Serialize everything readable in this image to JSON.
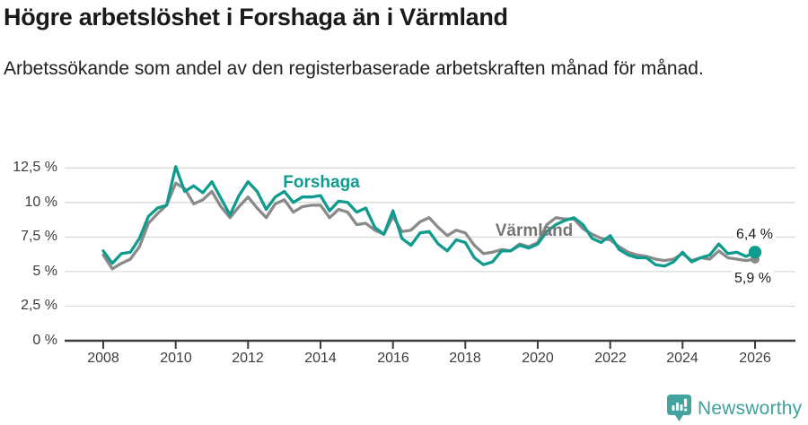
{
  "header": {
    "title": "Högre arbetslöshet i Forshaga än i Värmland",
    "subtitle": "Arbetssökande som andel av den registerbaserade arbetskraften månad för månad."
  },
  "chart_data": {
    "type": "line",
    "title": "Högre arbetslöshet i Forshaga än i Värmland",
    "xlabel": "",
    "ylabel": "",
    "grid": true,
    "legend_position": "inline-labels",
    "xlim": [
      2007.9,
      2026.6
    ],
    "ylim": [
      0,
      13
    ],
    "xticks": [
      2008,
      2010,
      2012,
      2014,
      2016,
      2018,
      2020,
      2022,
      2024,
      2026
    ],
    "yticks": {
      "values": [
        0,
        2.5,
        5,
        7.5,
        10,
        12.5
      ],
      "labels": [
        "0 %",
        "2,5 %",
        "5 %",
        "7,5 %",
        "10 %",
        "12,5 %"
      ]
    },
    "x": [
      2008.0,
      2008.25,
      2008.5,
      2008.75,
      2009.0,
      2009.25,
      2009.5,
      2009.75,
      2010.0,
      2010.25,
      2010.5,
      2010.75,
      2011.0,
      2011.25,
      2011.5,
      2011.75,
      2012.0,
      2012.25,
      2012.5,
      2012.75,
      2013.0,
      2013.25,
      2013.5,
      2013.75,
      2014.0,
      2014.25,
      2014.5,
      2014.75,
      2015.0,
      2015.25,
      2015.5,
      2015.75,
      2016.0,
      2016.25,
      2016.5,
      2016.75,
      2017.0,
      2017.25,
      2017.5,
      2017.75,
      2018.0,
      2018.25,
      2018.5,
      2018.75,
      2019.0,
      2019.25,
      2019.5,
      2019.75,
      2020.0,
      2020.25,
      2020.5,
      2020.75,
      2021.0,
      2021.25,
      2021.5,
      2021.75,
      2022.0,
      2022.25,
      2022.5,
      2022.75,
      2023.0,
      2023.25,
      2023.5,
      2023.75,
      2024.0,
      2024.25,
      2024.5,
      2024.75,
      2025.0,
      2025.25,
      2025.5,
      2025.75,
      2026.0
    ],
    "series": [
      {
        "id": "forshaga",
        "name": "Forshaga",
        "color": "#0f9b8d",
        "end_value": 6.4,
        "end_label": "6,4 %",
        "values": [
          6.5,
          5.6,
          6.3,
          6.4,
          7.4,
          9.0,
          9.6,
          9.8,
          12.6,
          10.8,
          11.2,
          10.7,
          11.5,
          10.3,
          9.1,
          10.5,
          11.5,
          10.8,
          9.5,
          10.4,
          10.8,
          10.0,
          10.4,
          10.4,
          10.5,
          9.4,
          10.1,
          10.0,
          9.3,
          9.6,
          8.2,
          7.7,
          9.4,
          7.4,
          6.9,
          7.8,
          7.9,
          7.0,
          6.5,
          7.3,
          7.1,
          6.0,
          5.5,
          5.7,
          6.5,
          6.5,
          6.9,
          6.7,
          7.0,
          7.9,
          8.4,
          8.7,
          8.9,
          8.4,
          7.4,
          7.1,
          7.6,
          6.6,
          6.2,
          6.0,
          6.0,
          5.5,
          5.4,
          5.7,
          6.4,
          5.7,
          6.0,
          6.2,
          7.0,
          6.3,
          6.4,
          6.1,
          6.4
        ]
      },
      {
        "id": "varmland",
        "name": "Värmland",
        "color": "#8a8a8a",
        "end_value": 5.9,
        "end_label": "5,9 %",
        "values": [
          6.2,
          5.2,
          5.6,
          5.9,
          6.8,
          8.5,
          9.2,
          9.8,
          11.4,
          11.0,
          9.9,
          10.2,
          10.8,
          9.7,
          8.9,
          9.7,
          10.4,
          9.6,
          8.9,
          9.9,
          10.2,
          9.3,
          9.7,
          9.8,
          9.8,
          8.9,
          9.5,
          9.3,
          8.4,
          8.5,
          8.0,
          7.7,
          9.0,
          7.9,
          8.0,
          8.6,
          8.9,
          8.2,
          7.6,
          8.0,
          7.8,
          6.9,
          6.3,
          6.4,
          6.6,
          6.5,
          7.0,
          6.8,
          7.1,
          8.4,
          8.9,
          8.8,
          8.8,
          8.1,
          7.7,
          7.4,
          7.3,
          6.8,
          6.4,
          6.2,
          6.1,
          5.9,
          5.8,
          5.9,
          6.3,
          5.8,
          6.0,
          5.9,
          6.5,
          6.0,
          5.9,
          5.8,
          5.9
        ]
      }
    ]
  },
  "footer": {
    "brand": "Newsworthy"
  },
  "colors": {
    "forshaga_teal": "#0f9b8d",
    "varmland_gray": "#8a8a8a",
    "gridline": "#d9d9d9",
    "axis": "#3d3d3d",
    "logo_teal": "#43a39f"
  }
}
